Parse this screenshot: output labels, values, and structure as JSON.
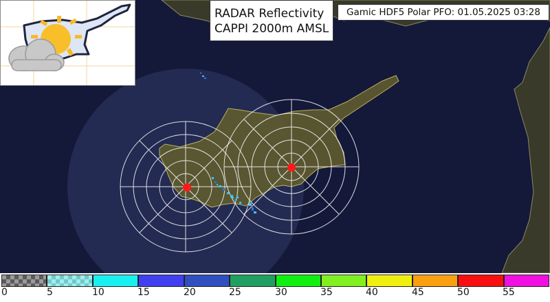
{
  "header": {
    "title_line1": "RADAR Reflectivity",
    "title_line2": "CAPPI 2000m AMSL",
    "timestamp": "Gamic HDF5 Polar PFO: 01.05.2025 03:28"
  },
  "logo": {
    "icon": "cyprus-sun-cloud-icon"
  },
  "map": {
    "colors": {
      "sea": "#14193a",
      "land": "#5a5632",
      "coverage": "#2a3158",
      "range_rings": "#ffffff",
      "radar_site": "#ff1a1a",
      "echo": "#3ac8ff"
    },
    "radar_sites": [
      {
        "name": "west-radar-site"
      },
      {
        "name": "east-radar-site"
      }
    ]
  },
  "legend": {
    "ticks": [
      "0",
      "5",
      "10",
      "15",
      "20",
      "25",
      "30",
      "35",
      "40",
      "45",
      "50",
      "55"
    ],
    "colors": [
      "checker-gray",
      "checker-cyan",
      "#19f0f0",
      "#4040f0",
      "#3050c0",
      "#20a060",
      "#10f010",
      "#80f020",
      "#f0f010",
      "#f8a010",
      "#f81010",
      "#f010e0"
    ]
  }
}
